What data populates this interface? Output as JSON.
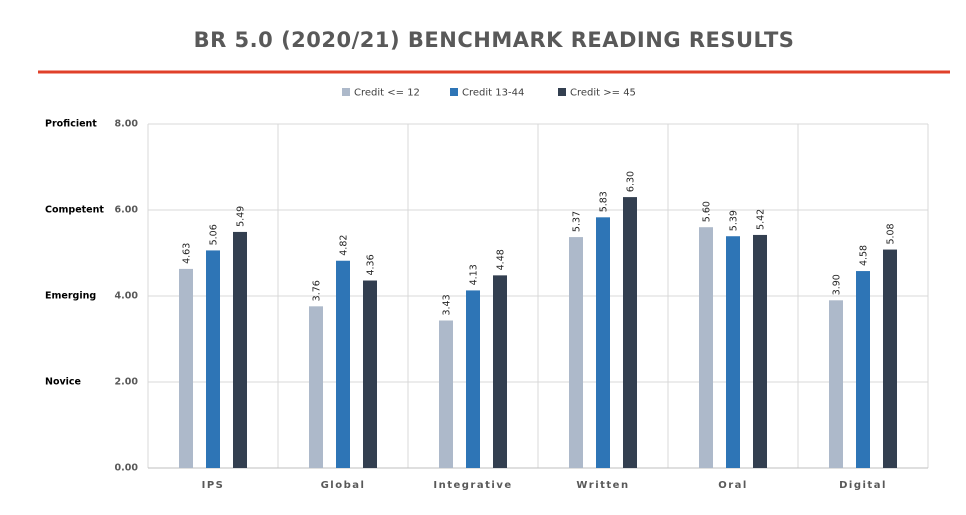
{
  "chart_data": {
    "type": "bar",
    "title": "BR 5.0 (2020/21) BENCHMARK READING RESULTS",
    "categories": [
      "IPS",
      "Global",
      "Integrative",
      "Written",
      "Oral",
      "Digital"
    ],
    "series": [
      {
        "name": "Credit <= 12",
        "color": "#adb9ca",
        "values": [
          4.63,
          3.76,
          3.43,
          5.37,
          5.6,
          3.9
        ],
        "value_labels": [
          "4.63",
          "3.76",
          "3.43",
          "5.37",
          "5.60",
          "3.90"
        ]
      },
      {
        "name": "Credit 13-44",
        "color": "#2e75b6",
        "values": [
          5.06,
          4.82,
          4.13,
          5.83,
          5.39,
          4.58
        ],
        "value_labels": [
          "5.06",
          "4.82",
          "4.13",
          "5.83",
          "5.39",
          "4.58"
        ]
      },
      {
        "name": "Credit >= 45",
        "color": "#333f50",
        "values": [
          5.49,
          4.36,
          4.48,
          6.3,
          5.42,
          5.08
        ],
        "value_labels": [
          "5.49",
          "4.36",
          "4.48",
          "6.30",
          "5.42",
          "5.08"
        ]
      }
    ],
    "ylim": [
      0,
      8
    ],
    "yticks": [
      {
        "value": 0,
        "label": "0.00"
      },
      {
        "value": 2,
        "label": "2.00"
      },
      {
        "value": 4,
        "label": "4.00"
      },
      {
        "value": 6,
        "label": "6.00"
      },
      {
        "value": 8,
        "label": "8.00"
      }
    ],
    "level_labels": [
      {
        "value": 8,
        "label": "Proficient"
      },
      {
        "value": 6,
        "label": "Competent"
      },
      {
        "value": 4,
        "label": "Emerging"
      },
      {
        "value": 2,
        "label": "Novice"
      }
    ],
    "grid": true,
    "legend": "top"
  }
}
